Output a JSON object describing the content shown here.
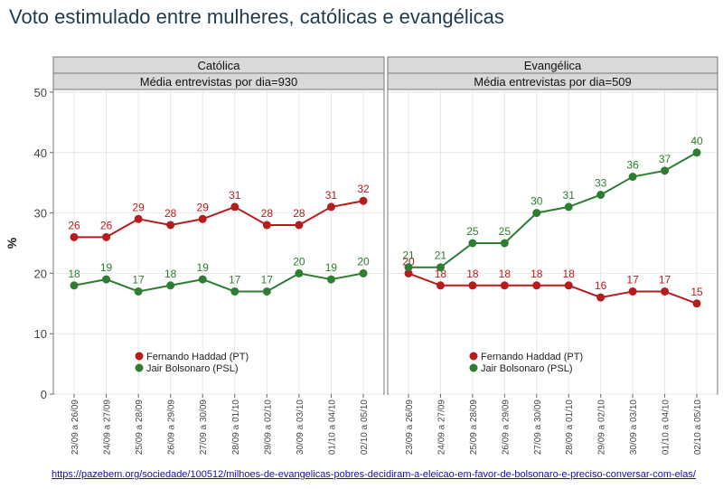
{
  "title": "Voto estimulado entre mulheres, católicas e evangélicas",
  "source_link": "https://pazebem.org/sociedade/100512/milhoes-de-evangelicas-pobres-decidiram-a-eleicao-em-favor-de-bolsonaro-e-preciso-conversar-com-elas/",
  "colors": {
    "haddad": "#b71c1c",
    "bolsonaro": "#2e7d32",
    "strip_bg": "#d9d9d9",
    "grid": "#e6e6e6"
  },
  "chart_data": {
    "type": "line",
    "ylabel": "%",
    "ylim": [
      0,
      50
    ],
    "yticks": [
      0,
      10,
      20,
      30,
      40,
      50
    ],
    "grid": true,
    "legend_position": "bottom-left",
    "categories": [
      "23/09 a 26/09",
      "24/09 a 27/09",
      "25/09 a 28/09",
      "26/09 a 29/09",
      "27/09 a 30/09",
      "28/09 a 01/10",
      "29/09 a 02/10",
      "30/09 a 03/10",
      "01/10 a 04/10",
      "02/10 a 05/10"
    ],
    "panels": [
      {
        "title": "Católica",
        "subtitle": "Média entrevistas por dia=930",
        "series": [
          {
            "name": "Fernando Haddad (PT)",
            "color_key": "haddad",
            "values": [
              26,
              26,
              29,
              28,
              29,
              31,
              28,
              28,
              31,
              32
            ]
          },
          {
            "name": "Jair Bolsonaro (PSL)",
            "color_key": "bolsonaro",
            "values": [
              18,
              19,
              17,
              18,
              19,
              17,
              17,
              20,
              19,
              20
            ]
          }
        ]
      },
      {
        "title": "Evangélica",
        "subtitle": "Média entrevistas por dia=509",
        "series": [
          {
            "name": "Fernando Haddad (PT)",
            "color_key": "haddad",
            "values": [
              20,
              18,
              18,
              18,
              18,
              18,
              16,
              17,
              17,
              15
            ]
          },
          {
            "name": "Jair Bolsonaro (PSL)",
            "color_key": "bolsonaro",
            "values": [
              21,
              21,
              25,
              25,
              30,
              31,
              33,
              36,
              37,
              40
            ]
          }
        ]
      }
    ]
  }
}
